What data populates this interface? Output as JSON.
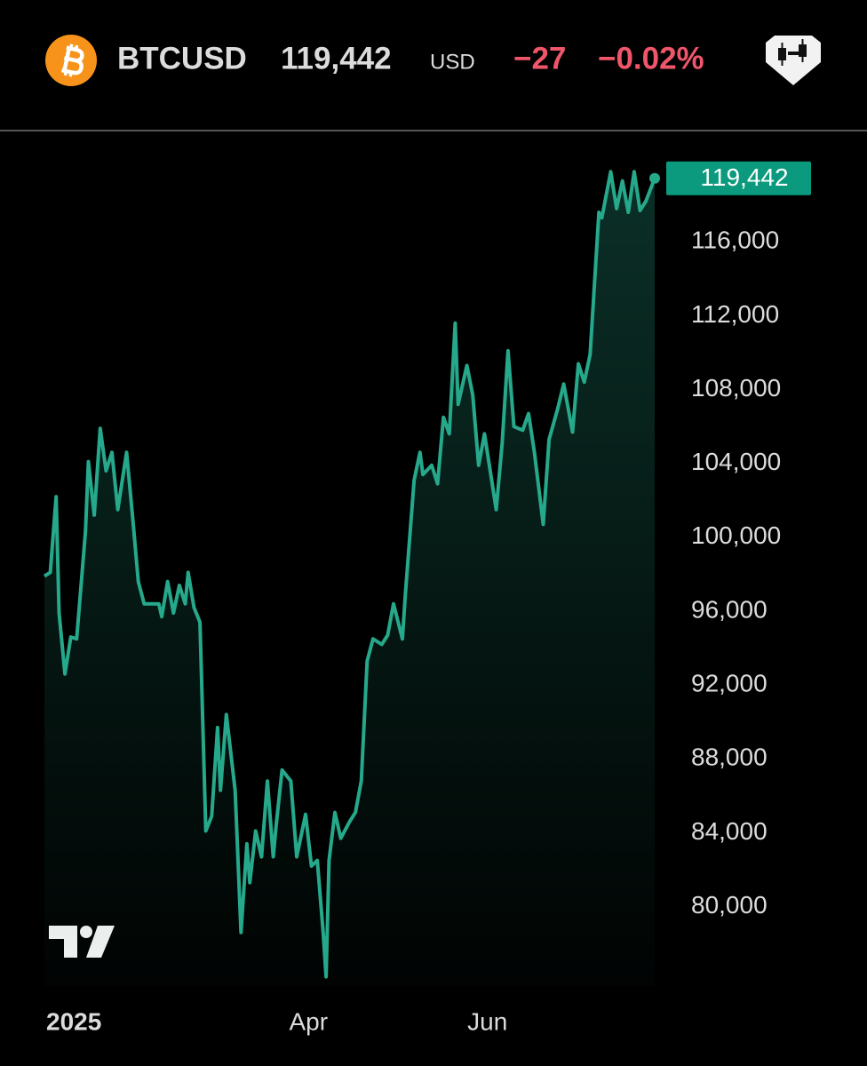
{
  "header": {
    "symbol": "BTCUSD",
    "price": "119,442",
    "currency": "USD",
    "change": "−27",
    "change_percent": "−0.02%"
  },
  "chart_data": {
    "type": "area",
    "color": "#26a98b",
    "x": [
      0,
      2,
      4,
      5,
      7,
      9,
      11,
      14,
      15,
      17,
      19,
      21,
      23,
      25,
      28,
      30,
      32,
      34,
      39,
      40,
      42,
      44,
      46,
      48,
      49,
      51,
      53,
      55,
      57,
      59,
      60,
      62,
      65,
      67,
      69,
      70,
      72,
      74,
      76,
      78,
      79,
      81,
      84,
      86,
      89,
      91,
      93,
      95,
      96,
      97,
      99,
      101,
      104,
      106,
      108,
      110,
      112,
      115,
      117,
      119,
      122,
      123,
      126,
      128,
      129,
      132,
      134,
      136,
      138,
      140,
      141,
      144,
      146,
      148,
      150,
      154,
      156,
      158,
      160,
      163,
      165,
      167,
      170,
      172,
      175,
      177,
      180,
      182,
      184,
      186,
      189,
      190,
      193,
      195,
      197,
      199,
      201,
      203,
      205,
      208
    ],
    "values": [
      97900,
      98100,
      102200,
      95900,
      92600,
      94600,
      94500,
      100300,
      104100,
      101200,
      105900,
      103600,
      104600,
      101500,
      104600,
      101200,
      97600,
      96400,
      96400,
      95700,
      97600,
      95900,
      97400,
      96400,
      98100,
      96200,
      95400,
      84100,
      84900,
      89700,
      86300,
      90400,
      86300,
      78600,
      83400,
      81300,
      84100,
      82700,
      86800,
      82700,
      84400,
      87400,
      86800,
      82700,
      85000,
      82200,
      82500,
      78600,
      76200,
      82500,
      85100,
      83700,
      84600,
      85100,
      86800,
      93300,
      94500,
      94200,
      94700,
      96400,
      94500,
      96900,
      103100,
      104600,
      103400,
      103900,
      102900,
      106500,
      105600,
      111600,
      107200,
      109300,
      107700,
      103900,
      105600,
      101500,
      105100,
      110100,
      106000,
      105800,
      106700,
      104600,
      100700,
      105300,
      107000,
      108300,
      105700,
      109400,
      108400,
      109900,
      117600,
      117300,
      119800,
      117800,
      119300,
      117600,
      119800,
      117700,
      118200,
      119442
    ],
    "xlim": [
      0,
      208
    ],
    "xticks": [
      {
        "value": 0,
        "label": "2025"
      },
      {
        "value": 90,
        "label": "Apr"
      },
      {
        "value": 151,
        "label": "Jun"
      }
    ],
    "ylim": [
      75700,
      121400
    ],
    "yticks": [
      {
        "value": 80000,
        "label": "80,000"
      },
      {
        "value": 84000,
        "label": "84,000"
      },
      {
        "value": 88000,
        "label": "88,000"
      },
      {
        "value": 92000,
        "label": "92,000"
      },
      {
        "value": 96000,
        "label": "96,000"
      },
      {
        "value": 100000,
        "label": "100,000"
      },
      {
        "value": 104000,
        "label": "104,000"
      },
      {
        "value": 108000,
        "label": "108,000"
      },
      {
        "value": 112000,
        "label": "112,000"
      },
      {
        "value": 116000,
        "label": "116,000"
      }
    ],
    "price_tag": {
      "value": 119442,
      "label": "119,442"
    },
    "grid": false
  }
}
